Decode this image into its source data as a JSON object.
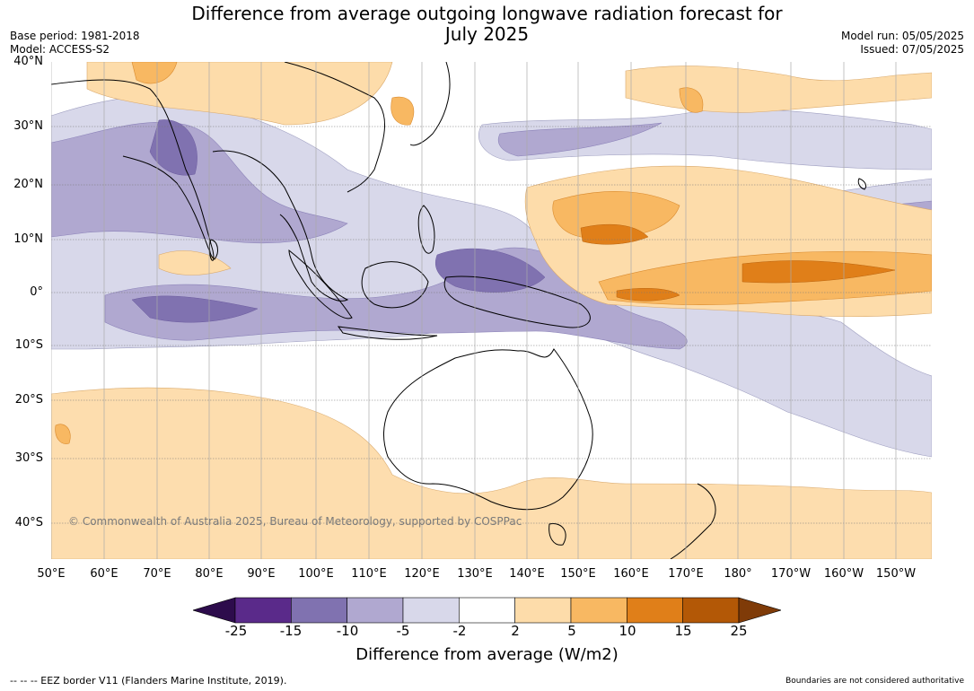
{
  "title_line1": "Difference from average outgoing longwave radiation forecast for",
  "title_line2": "July 2025",
  "base_period": "Base period: 1981-2018",
  "model": "Model: ACCESS-S2",
  "model_run": "Model run: 05/05/2025",
  "issued": "Issued: 07/05/2025",
  "latitude_labels": [
    "40°N",
    "30°N",
    "20°N",
    "10°N",
    "0°",
    "10°S",
    "20°S",
    "30°S",
    "40°S"
  ],
  "longitude_labels": [
    "50°E",
    "60°E",
    "70°E",
    "80°E",
    "90°E",
    "100°E",
    "110°E",
    "120°E",
    "130°E",
    "140°E",
    "150°E",
    "160°E",
    "170°E",
    "180°",
    "170°W",
    "160°W",
    "150°W"
  ],
  "copyright": "© Commonwealth of Australia 2025, Bureau of Meteorology, supported by COSPPac",
  "colorbar": {
    "ticks": [
      "-25",
      "-15",
      "-10",
      "-5",
      "-2",
      "2",
      "5",
      "10",
      "15",
      "25"
    ],
    "colors": [
      "#2d0c4c",
      "#5a2a8a",
      "#8072b0",
      "#b0a8d0",
      "#d8d8ea",
      "#ffffff",
      "#fddcaa",
      "#f8b862",
      "#e07f19",
      "#b35806",
      "#7f3b08"
    ],
    "label": "Difference from average (W/m2)"
  },
  "footer_left": "--  --  -- EEZ border V11 (Flanders Marine Institute, 2019).",
  "footer_right": "Boundaries are not considered authoritative"
}
